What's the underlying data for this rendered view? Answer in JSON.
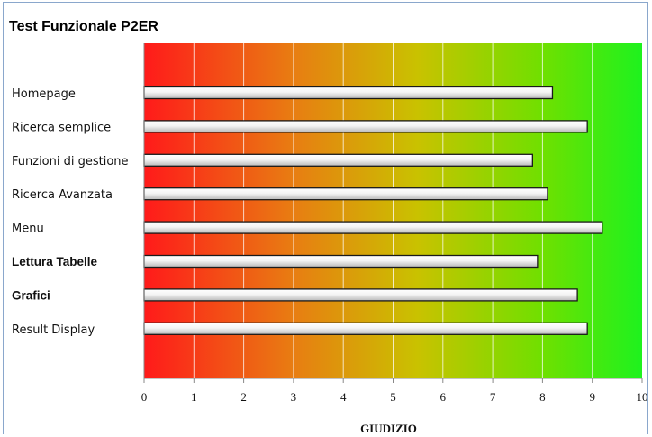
{
  "chart_data": {
    "type": "bar",
    "orientation": "horizontal",
    "title": "Test Funzionale P2ER",
    "xlabel": "GIUDIZIO",
    "ylabel": "",
    "xlim": [
      0,
      10
    ],
    "x_ticks": [
      "0",
      "1",
      "2",
      "3",
      "4",
      "5",
      "6",
      "7",
      "8",
      "9",
      "10"
    ],
    "background_gradient": [
      "#ff1a1a",
      "#e87d12",
      "#c9c200",
      "#6fe000",
      "#1ef21e"
    ],
    "bar_color": "#e8e8e8",
    "categories": [
      {
        "label": "Homepage",
        "bold": false
      },
      {
        "label": "Ricerca semplice",
        "bold": false
      },
      {
        "label": "Funzioni di gestione",
        "bold": false
      },
      {
        "label": "Ricerca Avanzata",
        "bold": false
      },
      {
        "label": "Menu",
        "bold": false
      },
      {
        "label": "Lettura Tabelle",
        "bold": true
      },
      {
        "label": "Grafici",
        "bold": true
      },
      {
        "label": "Result Display",
        "bold": false
      }
    ],
    "values": [
      8.2,
      8.9,
      7.8,
      8.1,
      9.2,
      7.9,
      8.7,
      8.9
    ],
    "grid": true
  }
}
